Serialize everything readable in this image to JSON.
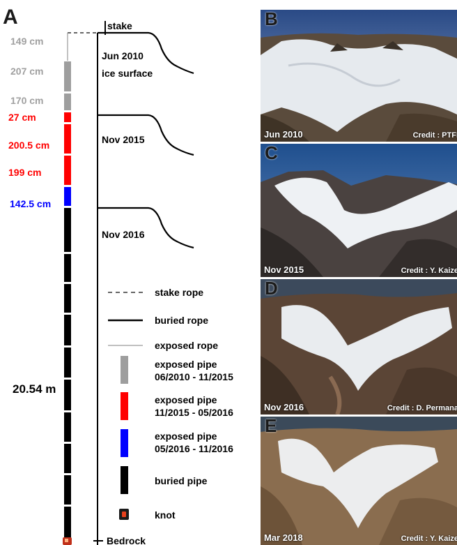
{
  "panel_a": {
    "letter": "A",
    "stake_label": "stake",
    "bedrock_label": "Bedrock",
    "surface_labels": [
      "Jun 2010",
      "ice surface",
      "Nov 2015",
      "Nov 2016"
    ],
    "pipe_segments": [
      {
        "label": "149 cm",
        "length_cm": 149,
        "color": "#9e9e9e",
        "kind": "exposed rope"
      },
      {
        "label": "207 cm",
        "length_cm": 207,
        "color": "#9e9e9e",
        "kind": "exposed pipe 06/2010 - 11/2015"
      },
      {
        "label": "170 cm",
        "length_cm": 170,
        "color": "#9e9e9e",
        "kind": "exposed pipe 06/2010 - 11/2015"
      },
      {
        "label": "27 cm",
        "length_cm": 27,
        "color": "#ff0000",
        "kind": "exposed pipe 11/2015 - 05/2016"
      },
      {
        "label": "200.5 cm",
        "length_cm": 200.5,
        "color": "#ff0000",
        "kind": "exposed pipe 11/2015 - 05/2016"
      },
      {
        "label": "199 cm",
        "length_cm": 199,
        "color": "#ff0000",
        "kind": "exposed pipe 11/2015 - 05/2016"
      },
      {
        "label": "142.5 cm",
        "length_cm": 142.5,
        "color": "#0000ff",
        "kind": "exposed pipe 05/2016 - 11/2016"
      }
    ],
    "buried_label": "20.54 m",
    "buried_length_m": 20.54,
    "buried_color": "#000000",
    "knot_color": "#e8401c"
  },
  "legend": [
    {
      "style": "dashed",
      "label": "stake rope"
    },
    {
      "style": "solid",
      "label": "buried rope"
    },
    {
      "style": "thin",
      "label": "exposed rope"
    },
    {
      "style": "pipe",
      "color": "#9e9e9e",
      "line1": "exposed pipe",
      "line2": "06/2010 - 11/2015"
    },
    {
      "style": "pipe",
      "color": "#ff0000",
      "line1": "exposed pipe",
      "line2": "11/2015 - 05/2016"
    },
    {
      "style": "pipe",
      "color": "#0000ff",
      "line1": "exposed pipe",
      "line2": "05/2016 - 11/2016"
    },
    {
      "style": "pipe",
      "color": "#000000",
      "line1": "buried pipe",
      "line2": ""
    },
    {
      "style": "knot",
      "label": "knot"
    }
  ],
  "photos": [
    {
      "letter": "B",
      "date": "Jun 2010",
      "credit": "Credit : PTFI"
    },
    {
      "letter": "C",
      "date": "Nov 2015",
      "credit": "Credit : Y. Kaize"
    },
    {
      "letter": "D",
      "date": "Nov 2016",
      "credit": "Credit : D. Permana"
    },
    {
      "letter": "E",
      "date": "Mar 2018",
      "credit": "Credit : Y. Kaize"
    }
  ]
}
